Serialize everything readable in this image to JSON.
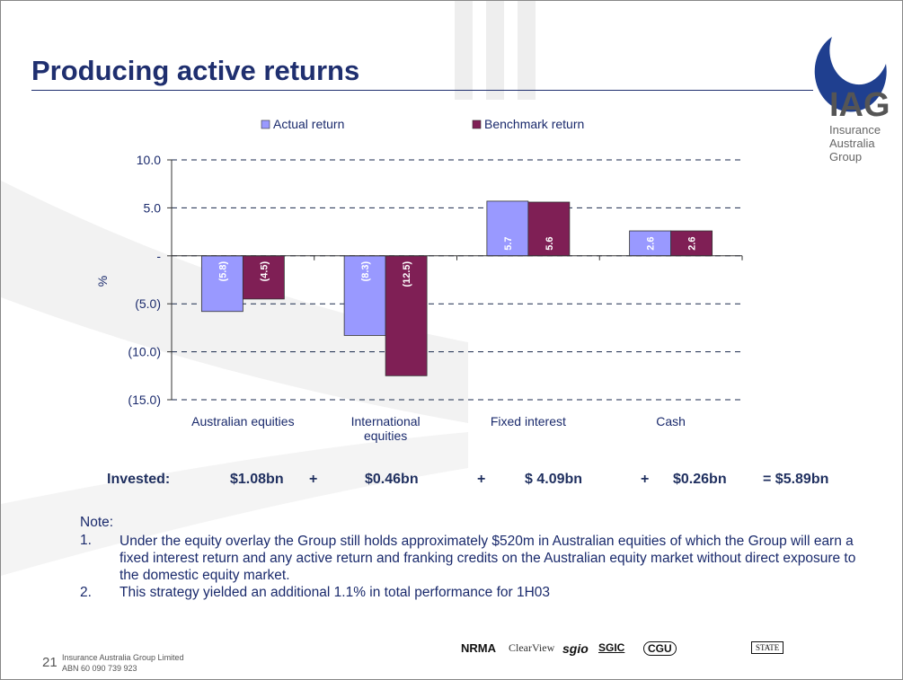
{
  "slide": {
    "title": "Producing active returns",
    "logo": {
      "mark": "IAG",
      "line1": "Insurance",
      "line2": "Australia",
      "line3": "Group"
    },
    "invested": [
      "Invested:",
      "$1.08bn",
      "+",
      "$0.46bn",
      "+",
      "$ 4.09bn",
      "+",
      "$0.26bn",
      "= $5.89bn"
    ],
    "note_heading": "Note:",
    "notes": [
      {
        "number": "1.",
        "text": "Under the equity overlay the Group still holds approximately $520m in Australian equities of which the Group will earn a fixed interest return and any active return and franking credits on the Australian equity market without direct exposure to the domestic equity market."
      },
      {
        "number": "2.",
        "text": "This strategy yielded an additional 1.1% in total performance for 1H03"
      }
    ],
    "footer": {
      "page": "21",
      "company": "Insurance Australia Group Limited",
      "abn": "ABN 60 090 739 923"
    },
    "brands": [
      "NRMA",
      "ClearView",
      "sgio",
      "SGIC",
      "CGU",
      "STATE"
    ]
  },
  "chart_data": {
    "type": "bar",
    "y_label": "%",
    "categories": [
      "Australian equities",
      "International\nequities",
      "Fixed interest",
      "Cash"
    ],
    "series": [
      {
        "name": "Actual return",
        "color": "#9999ff",
        "values": [
          -5.8,
          -8.3,
          5.7,
          2.6
        ],
        "value_labels": [
          "(5.8)",
          "(8.3)",
          "5.7",
          "2.6"
        ]
      },
      {
        "name": "Benchmark return",
        "color": "#7f1f55",
        "values": [
          -4.5,
          -12.5,
          5.6,
          2.6
        ],
        "value_labels": [
          "(4.5)",
          "(12.5)",
          "5.6",
          "2.6"
        ]
      }
    ],
    "ylim": [
      -15,
      10
    ],
    "yticks": [
      {
        "value": 10,
        "label": "10.0"
      },
      {
        "value": 5,
        "label": "5.0"
      },
      {
        "value": 0,
        "label": "-"
      },
      {
        "value": -5,
        "label": "(5.0)"
      },
      {
        "value": -10,
        "label": "(10.0)"
      },
      {
        "value": -15,
        "label": "(15.0)"
      }
    ],
    "grid": true,
    "legend": "top"
  }
}
